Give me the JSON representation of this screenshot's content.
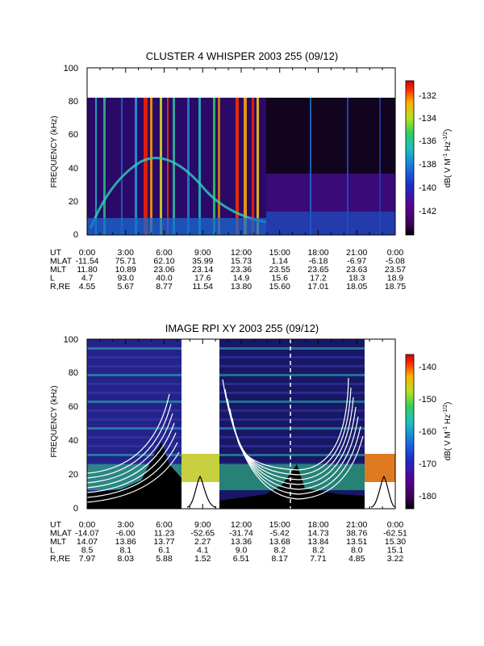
{
  "chart_data": [
    {
      "type": "heatmap",
      "title": "CLUSTER 4 WHISPER 2003 255 (09/12)",
      "ylabel": "FREQUENCY (kHz)",
      "ylim": [
        0,
        100
      ],
      "y_ticks": [
        "0",
        "20",
        "40",
        "60",
        "80",
        "100"
      ],
      "colorbar": {
        "label": "dB( V M",
        "unit_sup_1": "-1",
        "unit_mid": " Hz",
        "unit_sup_2": "-1/2",
        "unit_end": ")",
        "ticks": [
          "-132",
          "-134",
          "-136",
          "-138",
          "-140",
          "-142"
        ],
        "range": [
          -144,
          -131
        ]
      },
      "ephemeris": {
        "row_labels": [
          "UT",
          "MLAT",
          "MLT",
          "L",
          "R,RE"
        ],
        "columns": [
          [
            "0:00",
            "3:00",
            "6:00",
            "9:00",
            "12:00",
            "15:00",
            "18:00",
            "21:00",
            "0:00"
          ],
          [
            "-11.54",
            "75.71",
            "62.10",
            "35.99",
            "15.73",
            "1.14",
            "-6.18",
            "-6.97",
            "-5.08"
          ],
          [
            "11.80",
            "10.89",
            "23.06",
            "23.14",
            "23.36",
            "23.55",
            "23.65",
            "23.63",
            "23.57"
          ],
          [
            "4.7",
            "93.0",
            "40.0",
            "17.6",
            "14.9",
            "15.6",
            "17.2",
            "18.3",
            "18.9"
          ],
          [
            "4.55",
            "5.67",
            "8.77",
            "11.54",
            "13.80",
            "15.60",
            "17.01",
            "18.05",
            "18.75"
          ]
        ]
      }
    },
    {
      "type": "heatmap",
      "title": "IMAGE RPI XY 2003 255 (09/12)",
      "ylabel": "FREQUENCY (kHz)",
      "ylim": [
        0,
        100
      ],
      "y_ticks": [
        "0",
        "20",
        "40",
        "60",
        "80",
        "100"
      ],
      "colorbar": {
        "label": "dB( V M",
        "unit_sup_1": "-1",
        "unit_mid": " Hz",
        "unit_sup_2": "-1/2",
        "unit_end": ")",
        "ticks": [
          "-140",
          "-150",
          "-160",
          "-170",
          "-180"
        ],
        "range": [
          -185,
          -135
        ]
      },
      "ephemeris": {
        "row_labels": [
          "UT",
          "MLAT",
          "MLT",
          "L",
          "R,RE"
        ],
        "columns": [
          [
            "0:00",
            "3:00",
            "6:00",
            "9:00",
            "12:00",
            "15:00",
            "18:00",
            "21:00",
            "0:00"
          ],
          [
            "-14.07",
            "-6.00",
            "11.23",
            "-52.65",
            "-31.74",
            "-5.42",
            "14.73",
            "38.76",
            "-62.51"
          ],
          [
            "14.07",
            "13.86",
            "13.77",
            "2.27",
            "13.36",
            "13.68",
            "13.84",
            "13.51",
            "15.30"
          ],
          [
            "8.5",
            "8.1",
            "6.1",
            "4.1",
            "9.0",
            "8.2",
            "8.2",
            "8.0",
            "15.1"
          ],
          [
            "7.97",
            "8.03",
            "5.88",
            "1.52",
            "6.51",
            "8.17",
            "7.71",
            "4.85",
            "3.22"
          ]
        ]
      }
    }
  ]
}
